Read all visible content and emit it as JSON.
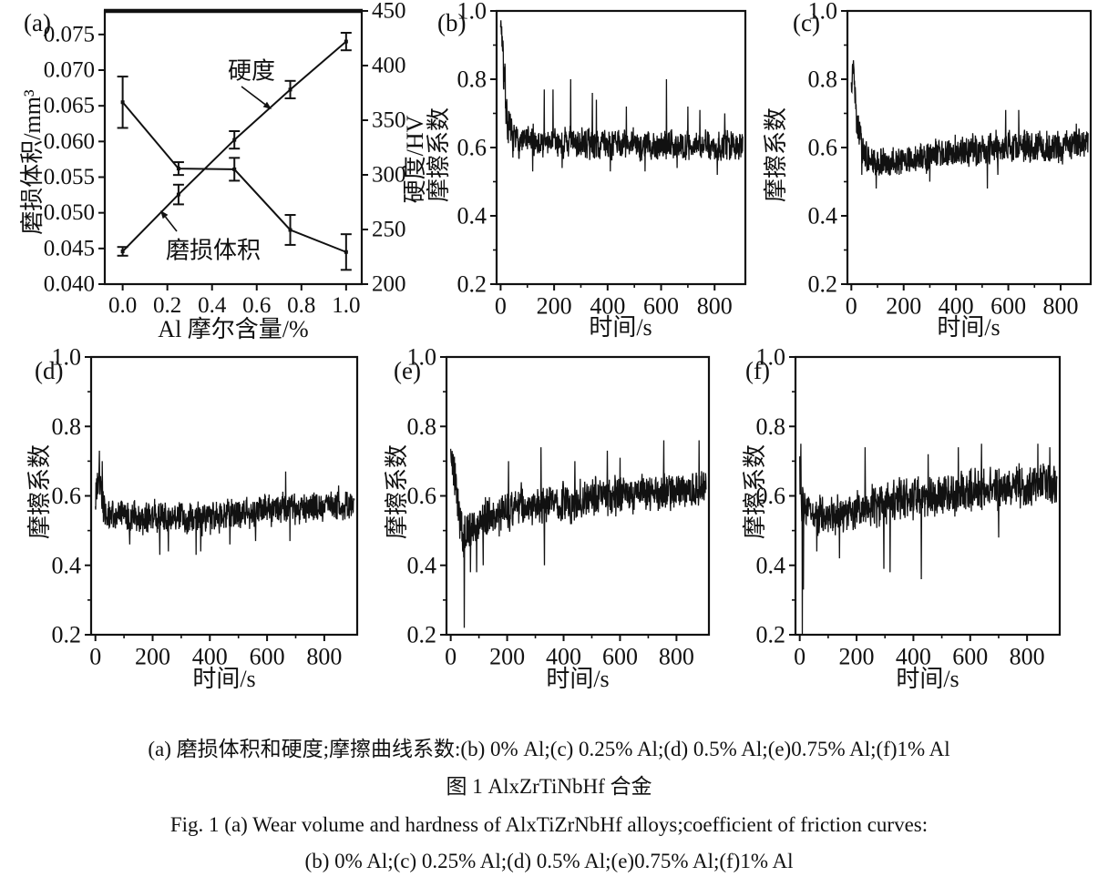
{
  "page": {
    "background": "#ffffff",
    "ink_color": "#111111"
  },
  "figure_caption": {
    "line1_zh": "(a) 磨损体积和硬度;摩擦曲线系数:(b) 0% Al;(c) 0.25% Al;(d) 0.5% Al;(e)0.75% Al;(f)1% Al",
    "line2_zh": "图 1    AlxZrTiNbHf 合金",
    "line3_en": "Fig. 1    (a)  Wear volume and hardness of AlxTiZrNbHf alloys;coefficient of friction curves:",
    "line4_en": "(b) 0% Al;(c) 0.25% Al;(d) 0.5% Al;(e)0.75% Al;(f)1% Al"
  },
  "chart_data": [
    {
      "id": "a",
      "type": "line",
      "panel_label": "(a)",
      "x_label": "Al 摩尔含量/%",
      "y_left_label": "磨损体积/mm³",
      "y_right_label": "硬度/HV",
      "x_range": [
        -0.08,
        1.07
      ],
      "x_ticks": [
        0.0,
        0.2,
        0.4,
        0.6,
        0.8,
        1.0
      ],
      "x_tick_labels": [
        "0.0",
        "0.2",
        "0.4",
        "0.6",
        "0.8",
        "1.0"
      ],
      "y_left_range": [
        0.04,
        0.0783
      ],
      "y_left_ticks": [
        0.04,
        0.045,
        0.05,
        0.055,
        0.06,
        0.065,
        0.07,
        0.075
      ],
      "y_left_tick_labels": [
        "0.040",
        "0.045",
        "0.050",
        "0.055",
        "0.060",
        "0.065",
        "0.070",
        "0.075"
      ],
      "y_right_range": [
        200,
        450
      ],
      "y_right_ticks": [
        200,
        250,
        300,
        350,
        400,
        450
      ],
      "y_right_tick_labels": [
        "200",
        "250",
        "300",
        "350",
        "400",
        "450"
      ],
      "grid": false,
      "legend": "none",
      "series": [
        {
          "name": "磨损体积",
          "axis": "left",
          "x": [
            0,
            0.25,
            0.5,
            0.75,
            1.0
          ],
          "y": [
            0.0655,
            0.0562,
            0.0561,
            0.0476,
            0.0445
          ],
          "yerr": [
            0.0036,
            0.0009,
            0.0016,
            0.0021,
            0.0025
          ]
        },
        {
          "name": "硬度",
          "axis": "right",
          "x": [
            0,
            0.25,
            0.5,
            0.75,
            1.0
          ],
          "y": [
            230,
            282,
            332,
            378,
            422
          ],
          "yerr": [
            4,
            9,
            8,
            8,
            8
          ]
        }
      ],
      "annotations": [
        {
          "text": "硬度"
        },
        {
          "text": "磨损体积"
        }
      ]
    },
    {
      "id": "b",
      "type": "line-noisy",
      "panel_label": "(b)",
      "composition": "0% Al",
      "x_label": "时间/s",
      "y_label": "摩擦系数",
      "x_range": [
        -15,
        915
      ],
      "x_ticks": [
        0,
        200,
        400,
        600,
        800
      ],
      "x_tick_labels": [
        "0",
        "200",
        "400",
        "600",
        "800"
      ],
      "x_minor_ticks": [
        100,
        300,
        500,
        700
      ],
      "y_range": [
        0.2,
        1.0
      ],
      "y_ticks": [
        0.2,
        0.4,
        0.6,
        0.8,
        1.0
      ],
      "y_tick_labels": [
        "0.2",
        "0.4",
        "0.6",
        "0.8",
        "1.0"
      ],
      "y_minor_ticks": [
        0.3,
        0.5,
        0.7,
        0.9
      ],
      "grid": false,
      "color": "#111111",
      "seed": 7,
      "trace_envelope": [
        {
          "t": 0,
          "mean": 0.97,
          "amp": 0.02
        },
        {
          "t": 6,
          "mean": 0.92,
          "amp": 0.06
        },
        {
          "t": 14,
          "mean": 0.8,
          "amp": 0.1
        },
        {
          "t": 25,
          "mean": 0.68,
          "amp": 0.07
        },
        {
          "t": 45,
          "mean": 0.62,
          "amp": 0.05
        },
        {
          "t": 150,
          "mean": 0.615,
          "amp": 0.05
        },
        {
          "t": 400,
          "mean": 0.61,
          "amp": 0.05
        },
        {
          "t": 700,
          "mean": 0.605,
          "amp": 0.05
        },
        {
          "t": 905,
          "mean": 0.61,
          "amp": 0.05
        }
      ],
      "spikes": [
        [
          120,
          0.53
        ],
        [
          163,
          0.77
        ],
        [
          196,
          0.77
        ],
        [
          230,
          0.54
        ],
        [
          262,
          0.8
        ],
        [
          343,
          0.76
        ],
        [
          358,
          0.74
        ],
        [
          410,
          0.53
        ],
        [
          470,
          0.72
        ],
        [
          540,
          0.53
        ],
        [
          620,
          0.8
        ],
        [
          660,
          0.54
        ],
        [
          700,
          0.72
        ],
        [
          745,
          0.71
        ],
        [
          810,
          0.52
        ],
        [
          838,
          0.7
        ]
      ]
    },
    {
      "id": "c",
      "type": "line-noisy",
      "panel_label": "(c)",
      "composition": "0.25% Al",
      "x_label": "时间/s",
      "y_label": "摩擦系数",
      "x_range": [
        -15,
        915
      ],
      "x_ticks": [
        0,
        200,
        400,
        600,
        800
      ],
      "x_tick_labels": [
        "0",
        "200",
        "400",
        "600",
        "800"
      ],
      "x_minor_ticks": [
        100,
        300,
        500,
        700
      ],
      "y_range": [
        0.2,
        1.0
      ],
      "y_ticks": [
        0.2,
        0.4,
        0.6,
        0.8,
        1.0
      ],
      "y_tick_labels": [
        "0.2",
        "0.4",
        "0.6",
        "0.8",
        "1.0"
      ],
      "y_minor_ticks": [
        0.3,
        0.5,
        0.7,
        0.9
      ],
      "grid": false,
      "color": "#111111",
      "seed": 13,
      "trace_envelope": [
        {
          "t": 0,
          "mean": 0.8,
          "amp": 0.05
        },
        {
          "t": 8,
          "mean": 0.85,
          "amp": 0.03
        },
        {
          "t": 20,
          "mean": 0.7,
          "amp": 0.06
        },
        {
          "t": 40,
          "mean": 0.6,
          "amp": 0.05
        },
        {
          "t": 70,
          "mean": 0.555,
          "amp": 0.045
        },
        {
          "t": 150,
          "mean": 0.555,
          "amp": 0.045
        },
        {
          "t": 300,
          "mean": 0.575,
          "amp": 0.05
        },
        {
          "t": 450,
          "mean": 0.59,
          "amp": 0.05
        },
        {
          "t": 600,
          "mean": 0.605,
          "amp": 0.05
        },
        {
          "t": 750,
          "mean": 0.6,
          "amp": 0.05
        },
        {
          "t": 905,
          "mean": 0.615,
          "amp": 0.045
        }
      ],
      "spikes": [
        [
          40,
          0.52
        ],
        [
          95,
          0.48
        ],
        [
          300,
          0.5
        ],
        [
          520,
          0.48
        ],
        [
          560,
          0.52
        ],
        [
          590,
          0.71
        ],
        [
          640,
          0.71
        ],
        [
          860,
          0.67
        ]
      ]
    },
    {
      "id": "d",
      "type": "line-noisy",
      "panel_label": "(d)",
      "composition": "0.5% Al",
      "x_label": "时间/s",
      "y_label": "摩擦系数",
      "x_range": [
        -15,
        915
      ],
      "x_ticks": [
        0,
        200,
        400,
        600,
        800
      ],
      "x_tick_labels": [
        "0",
        "200",
        "400",
        "600",
        "800"
      ],
      "x_minor_ticks": [
        100,
        300,
        500,
        700
      ],
      "y_range": [
        0.2,
        1.0
      ],
      "y_ticks": [
        0.2,
        0.4,
        0.6,
        0.8,
        1.0
      ],
      "y_tick_labels": [
        "0.2",
        "0.4",
        "0.6",
        "0.8",
        "1.0"
      ],
      "y_minor_ticks": [
        0.3,
        0.5,
        0.7,
        0.9
      ],
      "grid": false,
      "color": "#111111",
      "seed": 21,
      "trace_envelope": [
        {
          "t": 0,
          "mean": 0.58,
          "amp": 0.09
        },
        {
          "t": 10,
          "mean": 0.66,
          "amp": 0.07
        },
        {
          "t": 22,
          "mean": 0.6,
          "amp": 0.06
        },
        {
          "t": 40,
          "mean": 0.545,
          "amp": 0.055
        },
        {
          "t": 200,
          "mean": 0.54,
          "amp": 0.055
        },
        {
          "t": 400,
          "mean": 0.535,
          "amp": 0.055
        },
        {
          "t": 650,
          "mean": 0.565,
          "amp": 0.05
        },
        {
          "t": 905,
          "mean": 0.575,
          "amp": 0.05
        }
      ],
      "spikes": [
        [
          14,
          0.73
        ],
        [
          24,
          0.7
        ],
        [
          120,
          0.46
        ],
        [
          225,
          0.43
        ],
        [
          255,
          0.44
        ],
        [
          352,
          0.43
        ],
        [
          368,
          0.44
        ],
        [
          470,
          0.46
        ],
        [
          560,
          0.47
        ],
        [
          665,
          0.67
        ],
        [
          680,
          0.47
        ],
        [
          850,
          0.63
        ]
      ]
    },
    {
      "id": "e",
      "type": "line-noisy",
      "panel_label": "(e)",
      "composition": "0.75% Al",
      "x_label": "时间/s",
      "y_label": "摩擦系数",
      "x_range": [
        -15,
        915
      ],
      "x_ticks": [
        0,
        200,
        400,
        600,
        800
      ],
      "x_tick_labels": [
        "0",
        "200",
        "400",
        "600",
        "800"
      ],
      "x_minor_ticks": [
        100,
        300,
        500,
        700
      ],
      "y_range": [
        0.2,
        1.0
      ],
      "y_ticks": [
        0.2,
        0.4,
        0.6,
        0.8,
        1.0
      ],
      "y_tick_labels": [
        "0.2",
        "0.4",
        "0.6",
        "0.8",
        "1.0"
      ],
      "y_minor_ticks": [
        0.3,
        0.5,
        0.7,
        0.9
      ],
      "grid": false,
      "color": "#111111",
      "seed": 5,
      "trace_envelope": [
        {
          "t": 0,
          "mean": 0.71,
          "amp": 0.05
        },
        {
          "t": 12,
          "mean": 0.67,
          "amp": 0.07
        },
        {
          "t": 30,
          "mean": 0.55,
          "amp": 0.07
        },
        {
          "t": 45,
          "mean": 0.47,
          "amp": 0.08
        },
        {
          "t": 60,
          "mean": 0.5,
          "amp": 0.07
        },
        {
          "t": 110,
          "mean": 0.535,
          "amp": 0.065
        },
        {
          "t": 250,
          "mean": 0.57,
          "amp": 0.06
        },
        {
          "t": 450,
          "mean": 0.59,
          "amp": 0.065
        },
        {
          "t": 650,
          "mean": 0.605,
          "amp": 0.06
        },
        {
          "t": 905,
          "mean": 0.625,
          "amp": 0.055
        }
      ],
      "spikes": [
        [
          48,
          0.22
        ],
        [
          70,
          0.38
        ],
        [
          92,
          0.38
        ],
        [
          115,
          0.4
        ],
        [
          205,
          0.7
        ],
        [
          320,
          0.74
        ],
        [
          332,
          0.4
        ],
        [
          440,
          0.7
        ],
        [
          555,
          0.73
        ],
        [
          600,
          0.71
        ],
        [
          755,
          0.76
        ],
        [
          880,
          0.76
        ]
      ]
    },
    {
      "id": "f",
      "type": "line-noisy",
      "panel_label": "(f)",
      "composition": "1% Al",
      "x_label": "时间/s",
      "y_label": "摩擦系数",
      "x_range": [
        -15,
        915
      ],
      "x_ticks": [
        0,
        200,
        400,
        600,
        800
      ],
      "x_tick_labels": [
        "0",
        "200",
        "400",
        "600",
        "800"
      ],
      "x_minor_ticks": [
        100,
        300,
        500,
        700
      ],
      "y_range": [
        0.2,
        1.0
      ],
      "y_ticks": [
        0.2,
        0.4,
        0.6,
        0.8,
        1.0
      ],
      "y_tick_labels": [
        "0.2",
        "0.4",
        "0.6",
        "0.8",
        "1.0"
      ],
      "y_minor_ticks": [
        0.3,
        0.5,
        0.7,
        0.9
      ],
      "grid": false,
      "color": "#111111",
      "seed": 31,
      "trace_envelope": [
        {
          "t": 0,
          "mean": 0.66,
          "amp": 0.09
        },
        {
          "t": 8,
          "mean": 0.56,
          "amp": 0.08
        },
        {
          "t": 25,
          "mean": 0.55,
          "amp": 0.06
        },
        {
          "t": 120,
          "mean": 0.55,
          "amp": 0.06
        },
        {
          "t": 300,
          "mean": 0.575,
          "amp": 0.07
        },
        {
          "t": 480,
          "mean": 0.6,
          "amp": 0.07
        },
        {
          "t": 650,
          "mean": 0.615,
          "amp": 0.07
        },
        {
          "t": 905,
          "mean": 0.63,
          "amp": 0.065
        }
      ],
      "spikes": [
        [
          4,
          0.75
        ],
        [
          9,
          0.2
        ],
        [
          13,
          0.33
        ],
        [
          60,
          0.44
        ],
        [
          140,
          0.42
        ],
        [
          230,
          0.74
        ],
        [
          296,
          0.39
        ],
        [
          318,
          0.38
        ],
        [
          428,
          0.36
        ],
        [
          452,
          0.72
        ],
        [
          558,
          0.74
        ],
        [
          640,
          0.75
        ],
        [
          700,
          0.48
        ],
        [
          838,
          0.75
        ],
        [
          880,
          0.74
        ]
      ]
    }
  ]
}
